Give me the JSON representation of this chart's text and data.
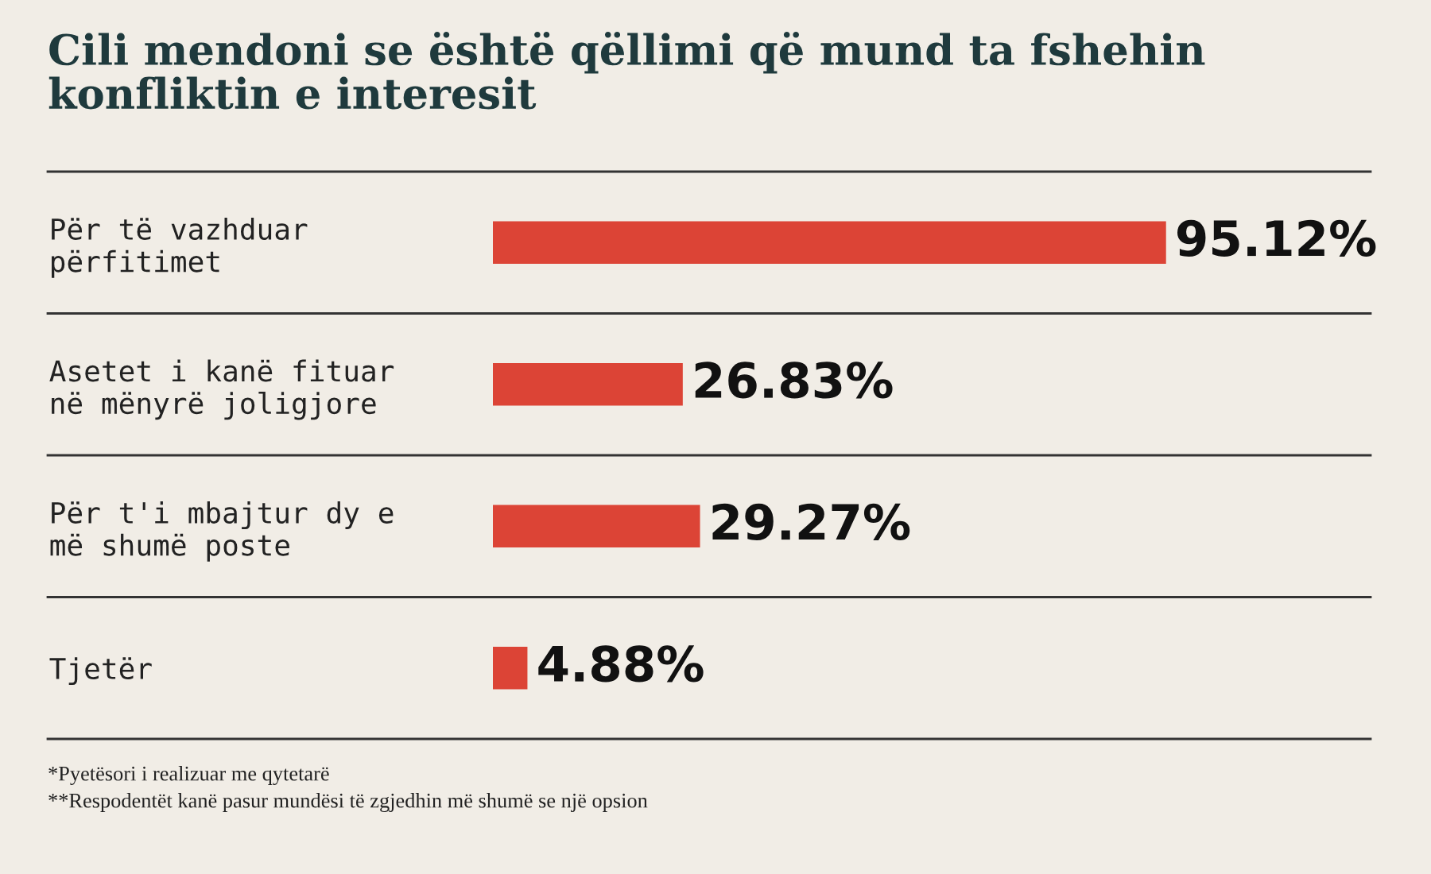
{
  "chart_data": {
    "type": "bar",
    "orientation": "horizontal",
    "title": "Cili mendoni se është qëllimi që mund ta fshehin\nkonfliktin e interesit",
    "categories": [
      "Për të vazhduar\npërfitimet",
      "Asetet i kanë fituar\nnë mënyrë joligjore",
      "Për t'i mbajtur dy e\nmë shumë poste",
      "Tjetër"
    ],
    "values": [
      95.12,
      26.83,
      29.27,
      4.88
    ],
    "value_labels": [
      "95.12%",
      "26.83%",
      "29.27%",
      "4.88%"
    ],
    "color": "#dc4436",
    "tick_labels": "y",
    "grid": false,
    "legend": false,
    "annotations": [
      "*Pyetësori i realizuar me qytetarë",
      "**Respodentët kanë pasur mundësi të zgjedhin më shumë se një opsion"
    ]
  }
}
